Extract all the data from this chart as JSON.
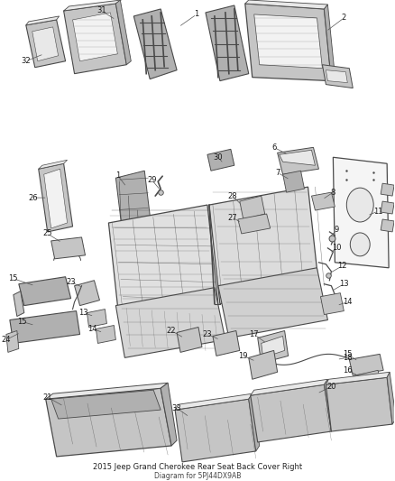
{
  "title": "2015 Jeep Grand Cherokee Rear Seat Back Cover Right",
  "subtitle": "Diagram for 5PJ44DX9AB",
  "bg_color": "#ffffff",
  "line_color": "#4a4a4a",
  "label_color": "#1a1a1a",
  "label_fontsize": 6.5,
  "title_fontsize": 6.5,
  "figsize": [
    4.38,
    5.33
  ],
  "dpi": 100
}
